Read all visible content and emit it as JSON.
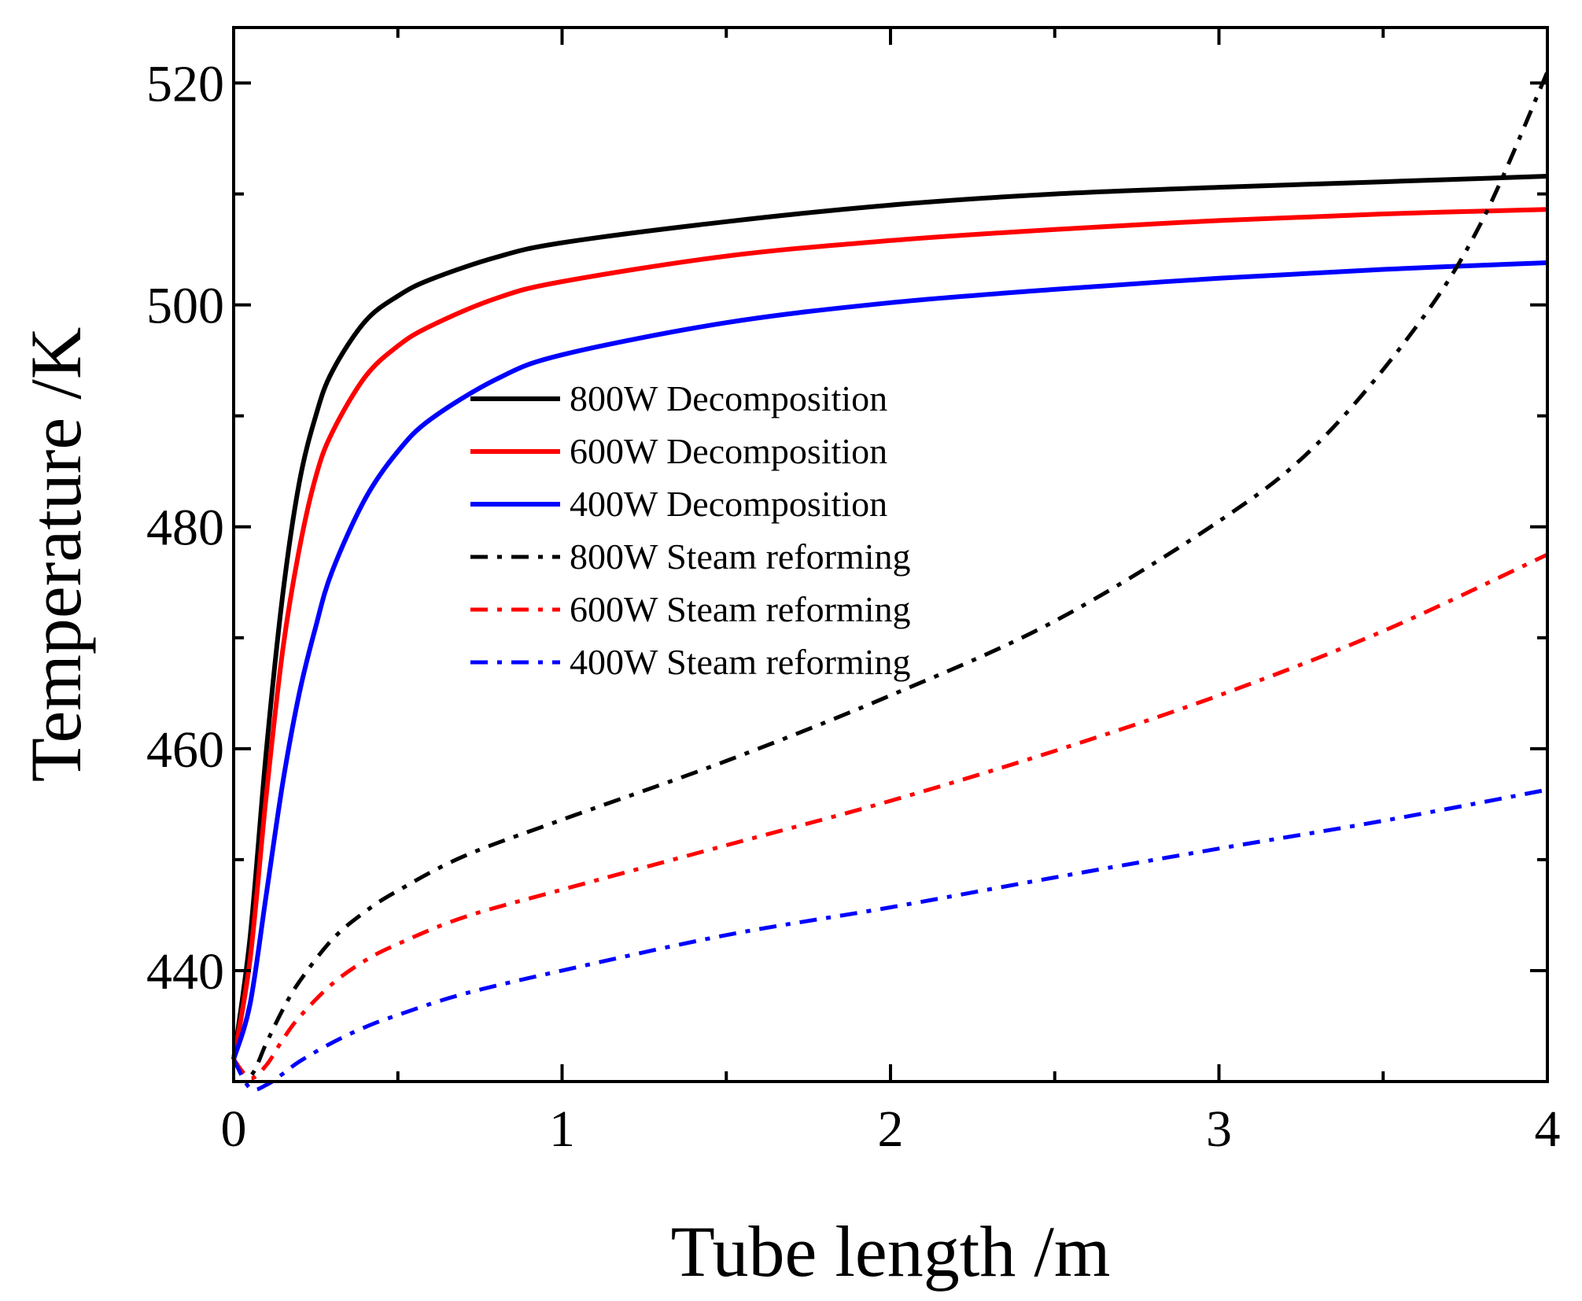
{
  "chart_data": {
    "type": "line",
    "title": "",
    "xlabel": "Tube length /m",
    "ylabel": "Temperature /K",
    "xlim": [
      0,
      4
    ],
    "ylim": [
      430,
      525
    ],
    "xticks": [
      0,
      1,
      2,
      3,
      4
    ],
    "xtick_labels": [
      "0",
      "1",
      "2",
      "3",
      "4"
    ],
    "xminor": [
      0.5,
      1.5,
      2.5,
      3.5
    ],
    "yticks": [
      440,
      460,
      480,
      500,
      520
    ],
    "ytick_labels": [
      "440",
      "460",
      "480",
      "500",
      "520"
    ],
    "yminor": [
      450,
      470,
      490,
      510
    ],
    "grid": false,
    "legend_position": "center-left",
    "series": [
      {
        "name": "800W Decomposition",
        "color": "#000000",
        "style": "solid",
        "x": [
          0,
          0.05,
          0.1,
          0.15,
          0.2,
          0.25,
          0.3,
          0.4,
          0.5,
          0.6,
          0.8,
          1.0,
          1.5,
          2.0,
          2.5,
          3.0,
          3.5,
          4.0
        ],
        "y": [
          432,
          443,
          460,
          474,
          484,
          490,
          494,
          498.5,
          500.8,
          502.3,
          504.3,
          505.6,
          507.5,
          509.0,
          510.0,
          510.6,
          511.1,
          511.6
        ]
      },
      {
        "name": "600W Decomposition",
        "color": "#ff0000",
        "style": "solid",
        "x": [
          0,
          0.05,
          0.1,
          0.15,
          0.2,
          0.25,
          0.3,
          0.4,
          0.5,
          0.6,
          0.8,
          1.0,
          1.5,
          2.0,
          2.5,
          3.0,
          3.5,
          4.0
        ],
        "y": [
          432,
          441,
          456,
          469,
          478,
          484.5,
          488.5,
          493.5,
          496.3,
          498.1,
          500.6,
          502.1,
          504.4,
          505.8,
          506.8,
          507.6,
          508.2,
          508.6
        ]
      },
      {
        "name": "400W Decomposition",
        "color": "#0000ff",
        "style": "solid",
        "x": [
          0,
          0.05,
          0.1,
          0.15,
          0.2,
          0.25,
          0.3,
          0.4,
          0.5,
          0.6,
          0.8,
          1.0,
          1.5,
          2.0,
          2.5,
          3.0,
          3.5,
          4.0
        ],
        "y": [
          432,
          437,
          447,
          457,
          465,
          471,
          476,
          482.5,
          486.8,
          489.7,
          493.3,
          495.5,
          498.4,
          500.2,
          501.4,
          502.4,
          503.2,
          503.8
        ]
      },
      {
        "name": "800W Steam reforming",
        "color": "#000000",
        "style": "dashdot",
        "x": [
          0,
          0.05,
          0.1,
          0.15,
          0.2,
          0.3,
          0.4,
          0.5,
          0.7,
          1.0,
          1.5,
          2.0,
          2.5,
          3.0,
          3.3,
          3.6,
          3.8,
          4.0
        ],
        "y": [
          432,
          430.5,
          433.5,
          436.5,
          439,
          442.8,
          445.3,
          447.2,
          450.3,
          453.6,
          458.9,
          464.8,
          471.5,
          480.5,
          487.5,
          498,
          507.5,
          521
        ]
      },
      {
        "name": "600W Steam reforming",
        "color": "#ff0000",
        "style": "dashdot",
        "x": [
          0,
          0.05,
          0.1,
          0.15,
          0.2,
          0.3,
          0.4,
          0.5,
          0.7,
          1.0,
          1.5,
          2.0,
          2.5,
          3.0,
          3.5,
          4.0
        ],
        "y": [
          432,
          430.3,
          431.5,
          433.8,
          435.8,
          438.8,
          440.9,
          442.4,
          444.8,
          447.3,
          451.3,
          455.3,
          459.8,
          464.8,
          470.6,
          477.5
        ]
      },
      {
        "name": "400W Steam reforming",
        "color": "#0000ff",
        "style": "dashdot",
        "x": [
          0,
          0.05,
          0.1,
          0.15,
          0.2,
          0.3,
          0.4,
          0.5,
          0.7,
          1.0,
          1.5,
          2.0,
          2.5,
          3.0,
          3.5,
          4.0
        ],
        "y": [
          432,
          429.4,
          429.7,
          430.7,
          431.8,
          433.5,
          434.9,
          436.0,
          437.9,
          440.0,
          443.2,
          445.7,
          448.4,
          451.0,
          453.5,
          456.3
        ]
      }
    ]
  }
}
